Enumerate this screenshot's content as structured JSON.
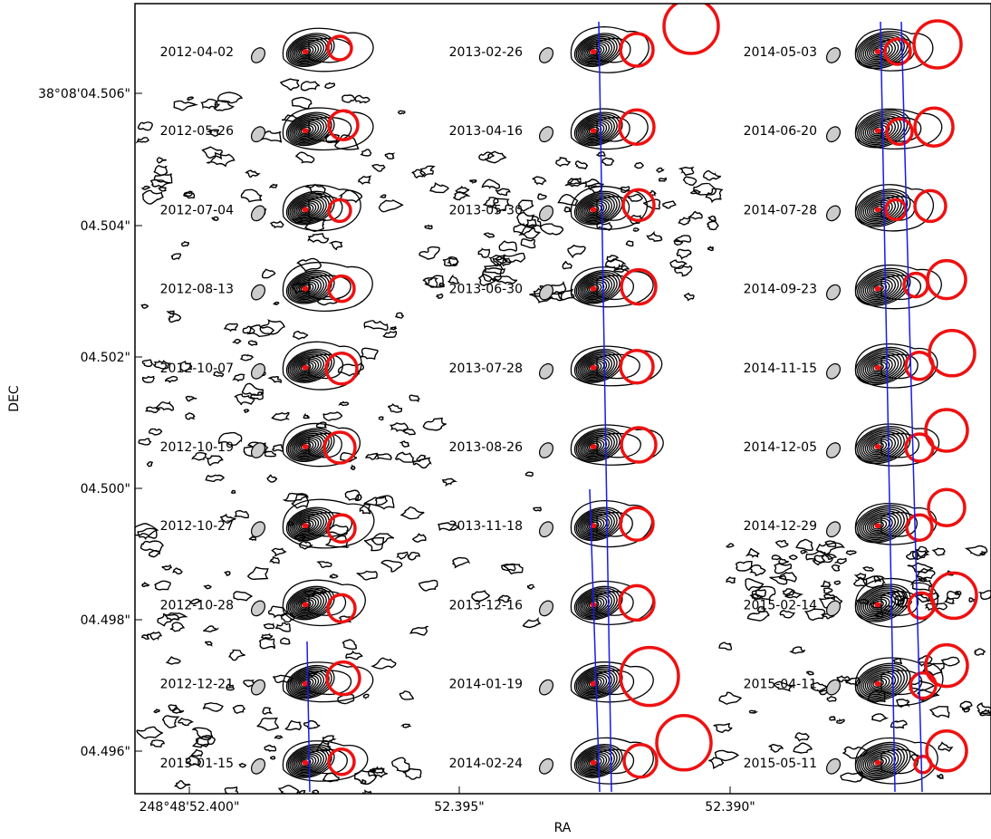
{
  "chart_data": {
    "type": "contour",
    "xlabel": "RA",
    "ylabel": "DEC",
    "x_ticks": [
      "248°48'52.400\"",
      "52.395\"",
      "52.390\""
    ],
    "y_ticks": [
      "38°08'04.506\"",
      "04.504\"",
      "04.502\"",
      "04.500\"",
      "04.498\"",
      "04.496\""
    ],
    "grid": false,
    "columns": [
      {
        "epochs": [
          "2012-04-02",
          "2012-05-26",
          "2012-07-04",
          "2012-08-13",
          "2012-10-07",
          "2012-10-19",
          "2012-10-27",
          "2012-10-28",
          "2012-12-21",
          "2013-01-15"
        ],
        "fit_lines": 1
      },
      {
        "epochs": [
          "2013-02-26",
          "2013-04-16",
          "2013-05-30",
          "2013-06-30",
          "2013-07-28",
          "2013-08-26",
          "2013-11-18",
          "2013-12-16",
          "2014-01-19",
          "2014-02-24"
        ],
        "fit_lines": 2
      },
      {
        "epochs": [
          "2014-05-03",
          "2014-06-20",
          "2014-07-28",
          "2014-09-23",
          "2014-11-15",
          "2014-12-05",
          "2014-12-29",
          "2015-02-14",
          "2015-04-11",
          "2015-05-11"
        ],
        "fit_lines": 2
      }
    ],
    "colors": {
      "contour": "#000000",
      "component": "#ee1111",
      "fit_line": "#1a1aee",
      "beam": "#cccccc"
    }
  }
}
